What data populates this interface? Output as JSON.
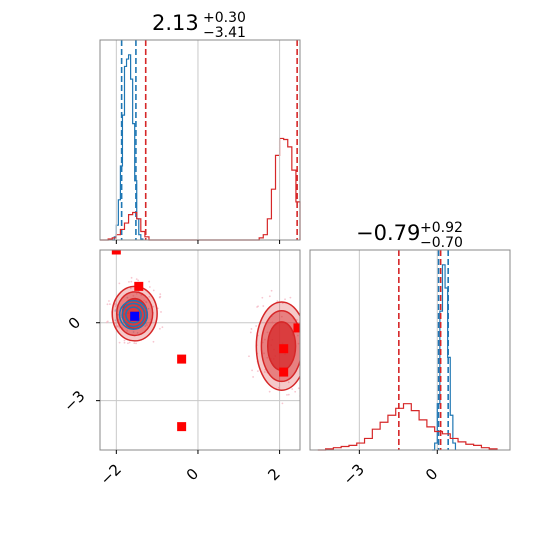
{
  "colors": {
    "blue": "#1f77b4",
    "red": "#d62728",
    "grid": "#c8c8c8",
    "frame": "#888888",
    "red_fill_light": "#f4a6a8",
    "red_fill_dark": "#d62728",
    "marker_red": "#ff0000",
    "marker_blue": "#0000ff"
  },
  "chart_data": [
    {
      "type": "histogram",
      "panel": "marginal-x",
      "title": {
        "value": "2.13",
        "upper": "+0.30",
        "lower": "−3.41"
      },
      "xlim": [
        -2.4,
        2.5
      ],
      "grid": true,
      "series": [
        {
          "color": "blue",
          "style": "step",
          "bins": [
            -2.1,
            -2.05,
            -2.0,
            -1.95,
            -1.9,
            -1.85,
            -1.8,
            -1.75,
            -1.7,
            -1.65,
            -1.6,
            -1.55,
            -1.5,
            -1.45,
            -1.4,
            -1.35
          ],
          "counts": [
            0,
            3,
            14,
            38,
            70,
            118,
            164,
            171,
            175,
            152,
            110,
            56,
            20,
            5,
            1,
            0
          ],
          "quantile_lines": [
            -1.87,
            -1.52
          ]
        },
        {
          "color": "red",
          "style": "step",
          "bins": [
            -2.4,
            -2.2,
            -2.1,
            -2.0,
            -1.9,
            -1.8,
            -1.7,
            -1.6,
            -1.5,
            -1.4,
            -1.3,
            -1.2,
            1.4,
            1.5,
            1.6,
            1.7,
            1.8,
            1.9,
            2.0,
            2.1,
            2.2,
            2.3,
            2.4,
            2.5
          ],
          "counts": [
            0,
            1,
            2,
            5,
            10,
            16,
            24,
            26,
            20,
            8,
            3,
            0,
            0,
            2,
            5,
            20,
            48,
            80,
            96,
            95,
            88,
            66,
            36,
            8
          ],
          "quantile_lines": [
            -1.28,
            2.43
          ]
        }
      ]
    },
    {
      "type": "scatter",
      "panel": "joint",
      "xlim": [
        -2.4,
        2.5
      ],
      "ylim": [
        -4.9,
        2.8
      ],
      "xticks": [
        "−2",
        "0",
        "2"
      ],
      "yticks": [
        "0",
        "−3"
      ],
      "xtick_values": [
        -2,
        0,
        2
      ],
      "ytick_values": [
        0,
        -3
      ],
      "grid": true,
      "markers": [
        {
          "x": -2.0,
          "y": 2.8,
          "color": "marker_red",
          "shape": "square"
        },
        {
          "x": -1.45,
          "y": 1.4,
          "color": "marker_red",
          "shape": "square"
        },
        {
          "x": -1.55,
          "y": 0.25,
          "color": "marker_red",
          "shape": "square"
        },
        {
          "x": -1.55,
          "y": 0.25,
          "color": "marker_blue",
          "shape": "square"
        },
        {
          "x": -0.4,
          "y": -1.4,
          "color": "marker_red",
          "shape": "square"
        },
        {
          "x": -0.4,
          "y": -4.0,
          "color": "marker_red",
          "shape": "square"
        },
        {
          "x": 2.1,
          "y": -1.0,
          "color": "marker_red",
          "shape": "square"
        },
        {
          "x": 2.1,
          "y": -1.9,
          "color": "marker_red",
          "shape": "square"
        },
        {
          "x": 2.45,
          "y": -0.2,
          "color": "marker_red",
          "shape": "square"
        }
      ],
      "contours": [
        {
          "color": "red",
          "center": [
            -1.55,
            0.35
          ],
          "rx": 0.55,
          "ry": 1.05
        },
        {
          "color": "blue",
          "center": [
            -1.58,
            0.3
          ],
          "rx": 0.34,
          "ry": 0.55
        },
        {
          "color": "red",
          "center": [
            2.05,
            -0.9
          ],
          "rx": 0.62,
          "ry": 1.7
        }
      ]
    },
    {
      "type": "histogram",
      "panel": "marginal-y",
      "title": {
        "value": "−0.79",
        "upper": "+0.92",
        "lower": "−0.70"
      },
      "xlim": [
        -4.9,
        2.8
      ],
      "xticks": [
        "−3",
        "0"
      ],
      "xtick_values": [
        -3,
        0
      ],
      "grid": true,
      "series": [
        {
          "color": "blue",
          "style": "step",
          "bins": [
            -0.2,
            -0.1,
            0.0,
            0.1,
            0.2,
            0.3,
            0.4,
            0.5,
            0.6,
            0.7
          ],
          "counts": [
            0,
            6,
            40,
            120,
            160,
            140,
            80,
            30,
            6,
            0
          ],
          "quantile_lines": [
            0.05,
            0.42
          ]
        },
        {
          "color": "red",
          "style": "step",
          "bins": [
            -4.6,
            -4.3,
            -4.0,
            -3.7,
            -3.4,
            -3.1,
            -2.8,
            -2.5,
            -2.2,
            -1.9,
            -1.6,
            -1.3,
            -1.0,
            -0.7,
            -0.4,
            -0.1,
            0.2,
            0.5,
            0.8,
            1.1,
            1.4,
            1.7,
            2.0,
            2.3
          ],
          "counts": [
            0,
            1,
            2,
            3,
            4,
            6,
            10,
            18,
            24,
            30,
            36,
            40,
            34,
            26,
            20,
            16,
            14,
            10,
            7,
            5,
            4,
            2,
            1,
            0
          ],
          "quantile_lines": [
            -1.48,
            0.13
          ]
        }
      ]
    }
  ]
}
